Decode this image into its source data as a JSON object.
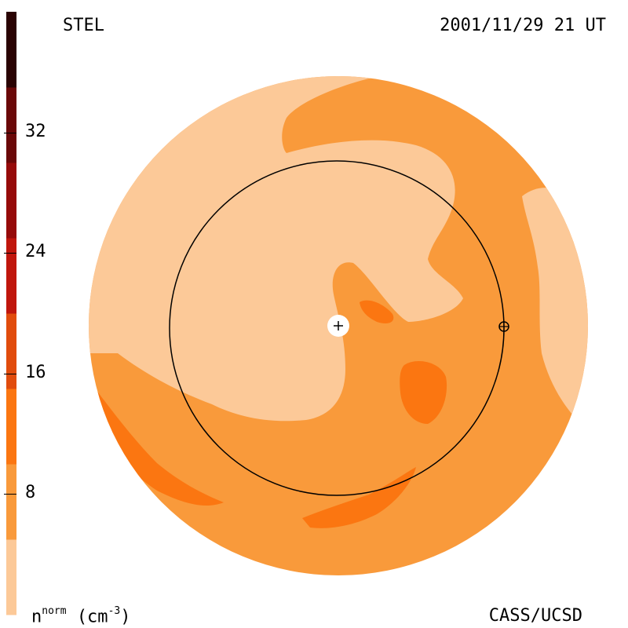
{
  "header": {
    "instrument": "STEL",
    "timestamp": "2001/11/29 21 UT"
  },
  "footer": {
    "credit": "CASS/UCSD"
  },
  "colorbar": {
    "quantity_main": "n",
    "quantity_sup": "norm",
    "unit": "(cm",
    "unit_sup": "-3",
    "unit_close": ")",
    "ticks": [
      {
        "label": "32",
        "value": 32
      },
      {
        "label": "24",
        "value": 24
      },
      {
        "label": "16",
        "value": 16
      },
      {
        "label": "8",
        "value": 8
      }
    ],
    "levels": [
      {
        "color": "#fcc998"
      },
      {
        "color": "#f99a3b"
      },
      {
        "color": "#fb7611"
      },
      {
        "color": "#e14c0d"
      },
      {
        "color": "#c0160d"
      },
      {
        "color": "#960b0a"
      },
      {
        "color": "#6a0808"
      },
      {
        "color": "#2a0303"
      }
    ]
  },
  "map_colors": {
    "lightest": "#fcc998",
    "medium": "#f99a3b",
    "strong": "#fb7611",
    "orbit_line": "#000000"
  },
  "markers": {
    "sun": "sun-plus-icon",
    "earth": "earth-circle-plus-icon"
  }
}
